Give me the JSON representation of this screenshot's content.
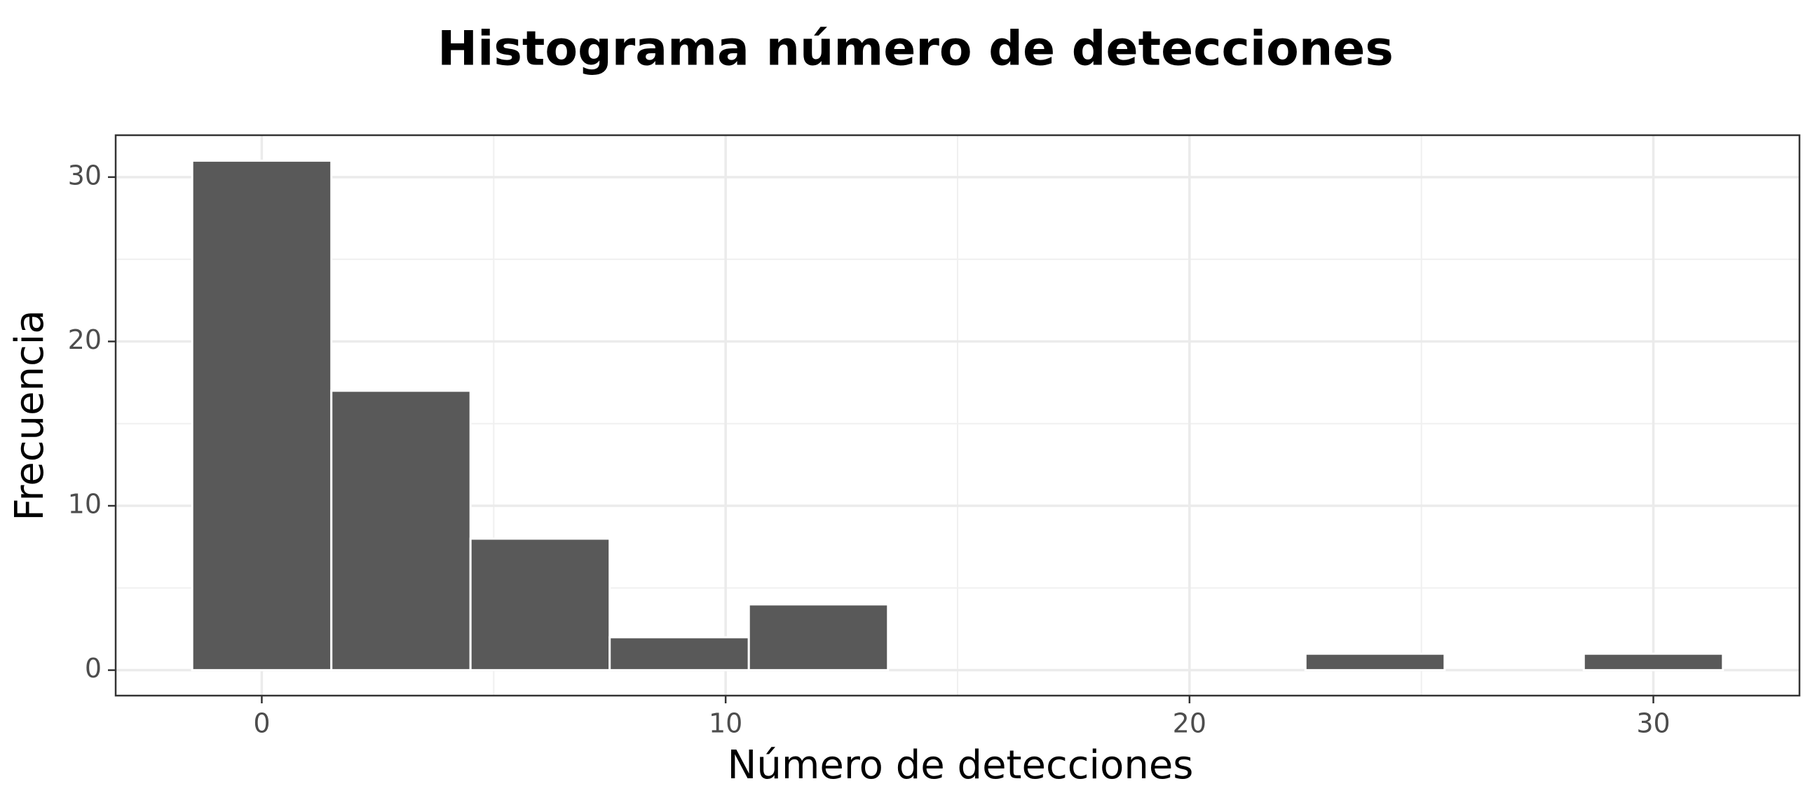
{
  "chart_data": {
    "type": "histogram",
    "title": "Histograma número de detecciones",
    "xlabel": "Número de detecciones",
    "ylabel": "Frecuencia",
    "bins": [
      -1.5,
      1.5,
      4.5,
      7.5,
      10.5,
      13.5,
      16.5,
      19.5,
      22.5,
      25.5,
      28.5,
      31.5
    ],
    "values": [
      31,
      17,
      8,
      2,
      4,
      0,
      0,
      0,
      1,
      0,
      1
    ],
    "color": "#595959",
    "xlim": [
      -3.15,
      33.15
    ],
    "ylim": [
      -1.55,
      32.55
    ],
    "xticks": [
      0,
      10,
      20,
      30
    ],
    "yticks": [
      0,
      10,
      20,
      30
    ],
    "xminor": [
      5,
      15,
      25
    ],
    "yminor": [
      5,
      15,
      25
    ],
    "grid": true
  }
}
